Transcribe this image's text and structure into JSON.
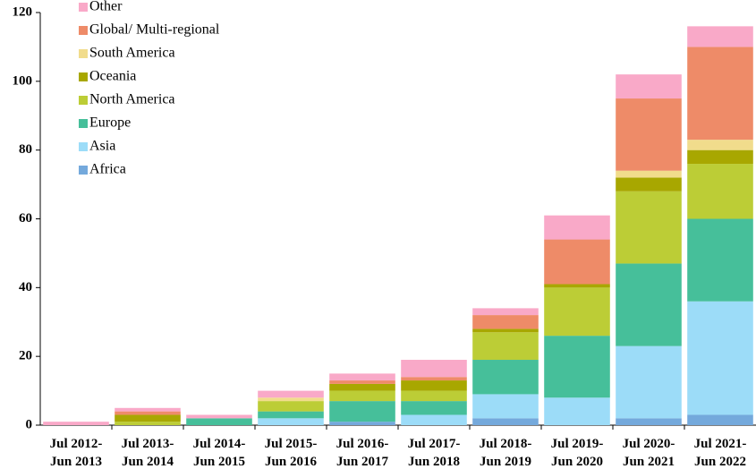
{
  "chart_data": {
    "type": "stacked_bar",
    "categories": [
      "Jul 2012-\nJun 2013",
      "Jul 2013-\nJun 2014",
      "Jul 2014-\nJun 2015",
      "Jul 2015-\nJun 2016",
      "Jul 2016-\nJun 2017",
      "Jul 2017-\nJun 2018",
      "Jul 2018-\nJun 2019",
      "Jul 2019-\nJun 2020",
      "Jul 2020-\nJun 2021",
      "Jul 2021-\nJun 2022"
    ],
    "series": [
      {
        "name": "Africa",
        "color": "#74a9dc",
        "values": [
          0,
          0,
          0,
          0,
          1,
          0,
          2,
          0,
          2,
          3
        ]
      },
      {
        "name": "Asia",
        "color": "#9cdcf8",
        "values": [
          0,
          0,
          0,
          2,
          0,
          3,
          7,
          8,
          21,
          33
        ]
      },
      {
        "name": "Europe",
        "color": "#46bf9a",
        "values": [
          0,
          0,
          2,
          2,
          6,
          4,
          10,
          18,
          24,
          24
        ]
      },
      {
        "name": "North America",
        "color": "#bccd36",
        "values": [
          0,
          1,
          0,
          3,
          3,
          3,
          8,
          14,
          21,
          16
        ]
      },
      {
        "name": "Oceania",
        "color": "#a8a700",
        "values": [
          0,
          2,
          0,
          0,
          2,
          3,
          1,
          1,
          4,
          4
        ]
      },
      {
        "name": "South America",
        "color": "#f1dc8c",
        "values": [
          0,
          0,
          0,
          1,
          0,
          0,
          0,
          0,
          2,
          3
        ]
      },
      {
        "name": "Global/ Multi-regional",
        "color": "#ee8b68",
        "values": [
          0,
          1,
          0,
          0,
          1,
          1,
          4,
          13,
          21,
          27
        ]
      },
      {
        "name": "Other",
        "color": "#f9a9c8",
        "values": [
          1,
          1,
          1,
          2,
          2,
          5,
          2,
          7,
          7,
          6
        ]
      }
    ],
    "ylim": [
      0,
      120
    ],
    "yticks": [
      0,
      20,
      40,
      60,
      80,
      100,
      120
    ],
    "grid": false,
    "legend": "upper left"
  }
}
